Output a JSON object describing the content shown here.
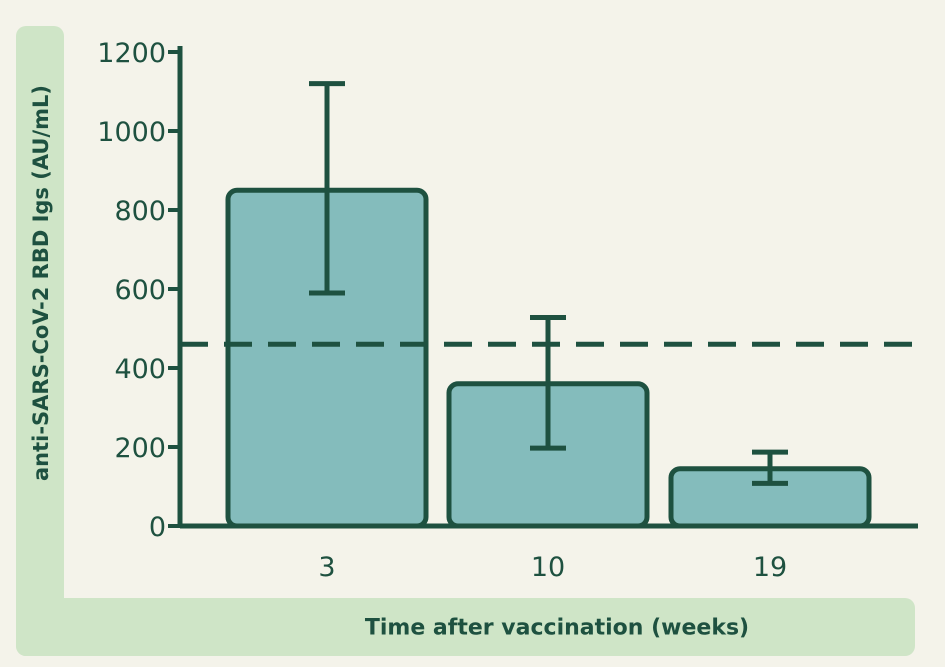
{
  "chart_data": {
    "type": "bar",
    "categories": [
      "3",
      "10",
      "19"
    ],
    "values": [
      850,
      360,
      145
    ],
    "error_bars": [
      {
        "low": 590,
        "high": 1120
      },
      {
        "low": 197,
        "high": 528
      },
      {
        "low": 108,
        "high": 187
      }
    ],
    "reference_line": 460,
    "xlabel": "Time after vaccination (weeks)",
    "ylabel": "anti-SARS-CoV-2 RBD Igs (AU/mL)",
    "ylim": [
      0,
      1200
    ],
    "yticks": [
      0,
      200,
      400,
      600,
      800,
      1000,
      1200
    ],
    "grid": false,
    "colors": {
      "bar_fill": "#84bcbc",
      "stroke": "#1e5140",
      "band": "#cfe5c7",
      "background": "#f4f3ea"
    }
  }
}
